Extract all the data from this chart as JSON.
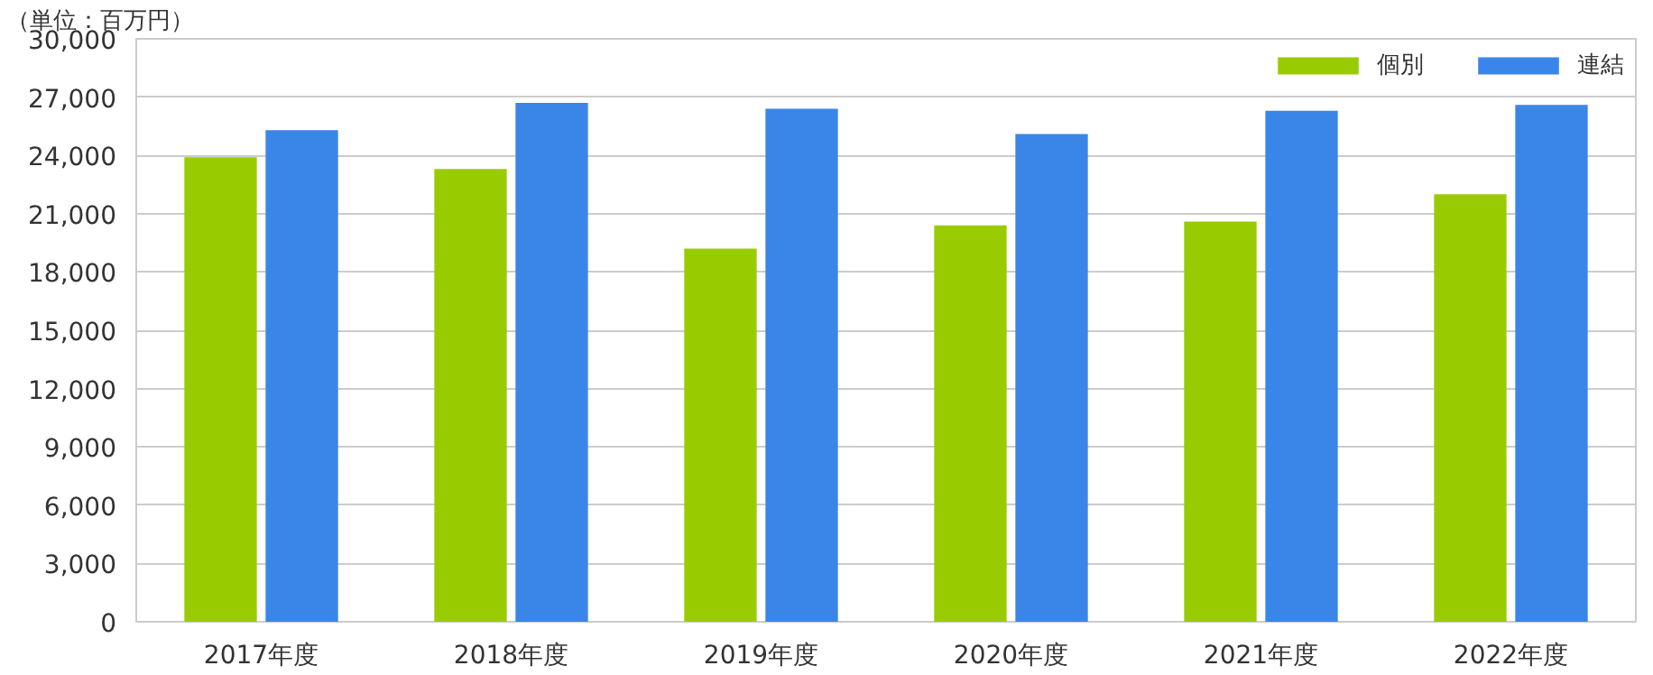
{
  "chart_data": {
    "type": "bar",
    "ylabel": "（単位：百万円）",
    "categories": [
      "2017年度",
      "2018年度",
      "2019年度",
      "2020年度",
      "2021年度",
      "2022年度"
    ],
    "series": [
      {
        "name": "個別",
        "color": "#99cc00",
        "values": [
          23900,
          23300,
          19200,
          20400,
          20600,
          22000
        ]
      },
      {
        "name": "連結",
        "color": "#3a86e8",
        "values": [
          25300,
          26700,
          26400,
          25100,
          26300,
          26600
        ]
      }
    ],
    "ylim": [
      0,
      30000
    ],
    "yticks": [
      {
        "value": 0,
        "label": "0"
      },
      {
        "value": 3000,
        "label": "3,000"
      },
      {
        "value": 6000,
        "label": "6,000"
      },
      {
        "value": 9000,
        "label": "9,000"
      },
      {
        "value": 12000,
        "label": "12,000"
      },
      {
        "value": 15000,
        "label": "15,000"
      },
      {
        "value": 18000,
        "label": "18,000"
      },
      {
        "value": 21000,
        "label": "21,000"
      },
      {
        "value": 24000,
        "label": "24,000"
      },
      {
        "value": 27000,
        "label": "27,000"
      },
      {
        "value": 30000,
        "label": "30,000"
      }
    ],
    "grid": "y",
    "legend": "top right"
  }
}
